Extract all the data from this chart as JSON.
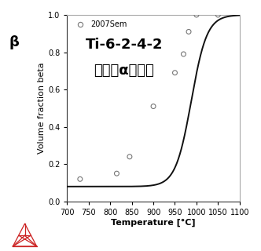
{
  "title_line1": "Ti-6-2-4-2",
  "title_line2": "（ニアα合金）",
  "xlabel": "Temperature [°C]",
  "ylabel": "Volume fraction beta",
  "xlim": [
    700,
    1100
  ],
  "ylim": [
    0.0,
    1.0
  ],
  "xticks": [
    700,
    750,
    800,
    850,
    900,
    950,
    1000,
    1050,
    1100
  ],
  "yticks": [
    0.0,
    0.2,
    0.4,
    0.6,
    0.8,
    1.0
  ],
  "scatter_x": [
    730,
    815,
    845,
    900,
    950,
    970,
    982,
    1000,
    1050
  ],
  "scatter_y": [
    0.12,
    0.15,
    0.24,
    0.51,
    0.69,
    0.79,
    0.91,
    1.0,
    1.0
  ],
  "scatter_label": "2007Sem",
  "scatter_edgecolor": "#777777",
  "scatter_size": 18,
  "curve_color": "#111111",
  "curve_lw": 1.4,
  "logo_color": "#cc2222",
  "title_fontsize": 13,
  "axis_label_fontsize": 8,
  "tick_fontsize": 7,
  "legend_fontsize": 7,
  "beta_fontsize": 13,
  "background_color": "#ffffff"
}
